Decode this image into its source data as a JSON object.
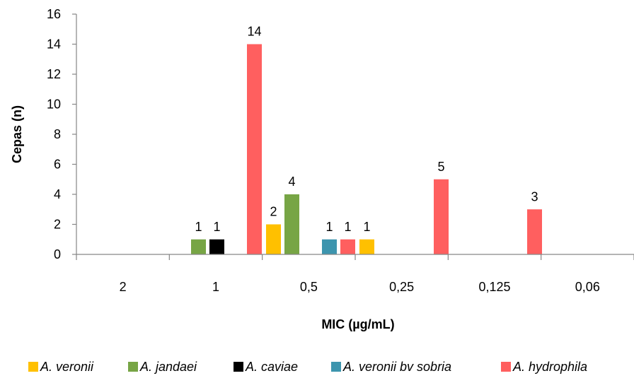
{
  "chart_data": {
    "type": "bar",
    "categories": [
      "2",
      "1",
      "0,5",
      "0,25",
      "0,125",
      "0,06"
    ],
    "xlabel": "MIC (µg/mL)",
    "ylabel": "Cepas (n)",
    "ylim": [
      0,
      16
    ],
    "yticks": [
      "0",
      "2",
      "4",
      "6",
      "8",
      "10",
      "12",
      "14",
      "16"
    ],
    "grid": false,
    "legend_position": "bottom",
    "series": [
      {
        "name": "A. veronii",
        "color": "#FFC000",
        "values": [
          0,
          0,
          2,
          1,
          0,
          0
        ]
      },
      {
        "name": "A. jandaei",
        "color": "#77A545",
        "values": [
          0,
          1,
          4,
          0,
          0,
          0
        ]
      },
      {
        "name": "A. caviae",
        "color": "#000000",
        "values": [
          0,
          1,
          0,
          0,
          0,
          0
        ]
      },
      {
        "name": "A. veronii bv sobria",
        "color": "#3D95AE",
        "values": [
          0,
          0,
          1,
          0,
          0,
          0
        ]
      },
      {
        "name": "A. hydrophila",
        "color": "#FF5F5F",
        "values": [
          0,
          14,
          1,
          5,
          3,
          0
        ]
      }
    ],
    "bars": [
      {
        "series": 1,
        "category": 1,
        "value": 1,
        "label": "1"
      },
      {
        "series": 2,
        "category": 1,
        "value": 1,
        "label": "1"
      },
      {
        "series": 4,
        "category": 1,
        "value": 14,
        "label": "14"
      },
      {
        "series": 0,
        "category": 2,
        "value": 2,
        "label": "2"
      },
      {
        "series": 1,
        "category": 2,
        "value": 4,
        "label": "4"
      },
      {
        "series": 3,
        "category": 2,
        "value": 1,
        "label": "1"
      },
      {
        "series": 4,
        "category": 2,
        "value": 1,
        "label": "1"
      },
      {
        "series": 0,
        "category": 3,
        "value": 1,
        "label": "1"
      },
      {
        "series": 4,
        "category": 3,
        "value": 5,
        "label": "5"
      },
      {
        "series": 4,
        "category": 4,
        "value": 3,
        "label": "3"
      }
    ]
  }
}
